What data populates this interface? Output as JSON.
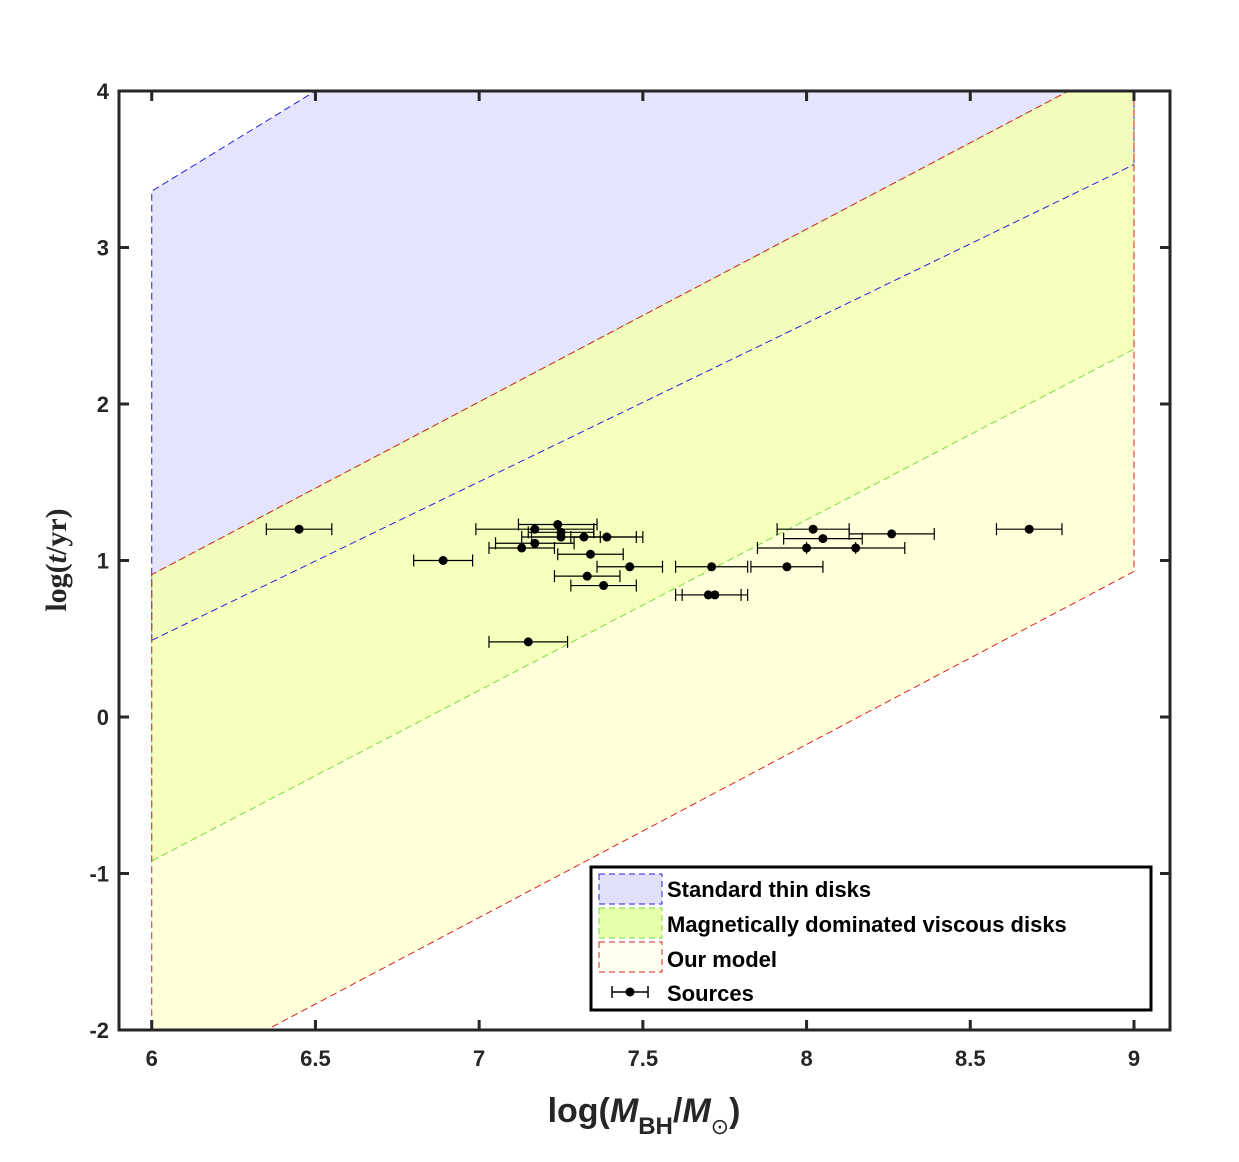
{
  "chart_data": {
    "type": "scatter",
    "xlabel": {
      "prefix": "log(",
      "var": "M",
      "sub": "BH",
      "slash": "/",
      "var2": "M",
      "sub2": "⊙",
      "suffix": ")"
    },
    "ylabel": {
      "prefix": "log(",
      "var": "t",
      "suffix": "/yr)"
    },
    "xlim": [
      5.9,
      9.11
    ],
    "ylim": [
      -2,
      4
    ],
    "xticks": [
      6,
      6.5,
      7,
      7.5,
      8,
      8.5,
      9
    ],
    "xtick_labels": [
      "6",
      "6.5",
      "7",
      "7.5",
      "8",
      "8.5",
      "9"
    ],
    "yticks": [
      -2,
      -1,
      0,
      1,
      2,
      3,
      4
    ],
    "ytick_labels": [
      "-2",
      "-1",
      "0",
      "1",
      "2",
      "3",
      "4"
    ],
    "regions": [
      {
        "name": "Standard thin disks",
        "fill": "#d2d2fa",
        "opacity": 0.6,
        "stroke": "#2222dd",
        "polygon": [
          [
            6,
            0.49
          ],
          [
            9,
            3.53
          ],
          [
            9,
            4
          ],
          [
            6.5,
            4
          ],
          [
            6,
            3.36
          ]
        ]
      },
      {
        "name": "Magnetically dominated viscous disks",
        "fill": "#e0ff8c",
        "opacity": 0.6,
        "stroke": "#77dd44",
        "polygon": [
          [
            6,
            -0.92
          ],
          [
            9,
            2.35
          ],
          [
            9,
            4
          ],
          [
            8.8,
            4
          ],
          [
            6,
            0.91
          ]
        ]
      },
      {
        "name": "Our model",
        "fill": "#ffffc0",
        "opacity": 0.6,
        "stroke": "#dd2222",
        "polygon": [
          [
            6,
            -2
          ],
          [
            6.35,
            -2
          ],
          [
            9,
            0.93
          ],
          [
            9,
            4
          ],
          [
            8.8,
            4
          ],
          [
            6,
            0.91
          ]
        ]
      }
    ],
    "series": [
      {
        "name": "Sources",
        "marker": "circle",
        "color": "#000000",
        "points": [
          {
            "x": 6.45,
            "y": 1.2,
            "xerr": 0.1
          },
          {
            "x": 6.89,
            "y": 1.0,
            "xerr": 0.09
          },
          {
            "x": 7.15,
            "y": 0.48,
            "xerr": 0.12
          },
          {
            "x": 7.13,
            "y": 1.08,
            "xerr": 0.1
          },
          {
            "x": 7.17,
            "y": 1.2,
            "xerr": 0.18
          },
          {
            "x": 7.17,
            "y": 1.11,
            "xerr": 0.12
          },
          {
            "x": 7.24,
            "y": 1.23,
            "xerr": 0.12
          },
          {
            "x": 7.25,
            "y": 1.18,
            "xerr": 0.1
          },
          {
            "x": 7.25,
            "y": 1.15,
            "xerr": 0.12
          },
          {
            "x": 7.32,
            "y": 1.15,
            "xerr": 0.16
          },
          {
            "x": 7.39,
            "y": 1.15,
            "xerr": 0.11
          },
          {
            "x": 7.34,
            "y": 1.04,
            "xerr": 0.1
          },
          {
            "x": 7.46,
            "y": 0.96,
            "xerr": 0.1
          },
          {
            "x": 7.33,
            "y": 0.9,
            "xerr": 0.1
          },
          {
            "x": 7.38,
            "y": 0.84,
            "xerr": 0.1
          },
          {
            "x": 7.71,
            "y": 0.96,
            "xerr": 0.11
          },
          {
            "x": 7.7,
            "y": 0.78,
            "xerr": 0.1
          },
          {
            "x": 7.72,
            "y": 0.78,
            "xerr": 0.1
          },
          {
            "x": 7.94,
            "y": 0.96,
            "xerr": 0.11
          },
          {
            "x": 8.0,
            "y": 1.08,
            "xerr": 0.15
          },
          {
            "x": 8.02,
            "y": 1.2,
            "xerr": 0.11
          },
          {
            "x": 8.05,
            "y": 1.14,
            "xerr": 0.12
          },
          {
            "x": 8.15,
            "y": 1.08,
            "xerr": 0.15
          },
          {
            "x": 8.26,
            "y": 1.17,
            "xerr": 0.13
          },
          {
            "x": 8.68,
            "y": 1.2,
            "xerr": 0.1
          }
        ]
      }
    ],
    "legend": {
      "position": "bottom-right",
      "entries": [
        {
          "label": "Standard thin disks",
          "fill": "#e0e0fb",
          "stroke": "#2222dd"
        },
        {
          "label": "Magnetically dominated viscous disks",
          "fill": "#e5ffaa",
          "stroke": "#77dd44"
        },
        {
          "label": "Our model",
          "fill": "#fffff0",
          "stroke": "#dd2222"
        },
        {
          "label": "Sources",
          "marker": "errorbar"
        }
      ]
    }
  }
}
